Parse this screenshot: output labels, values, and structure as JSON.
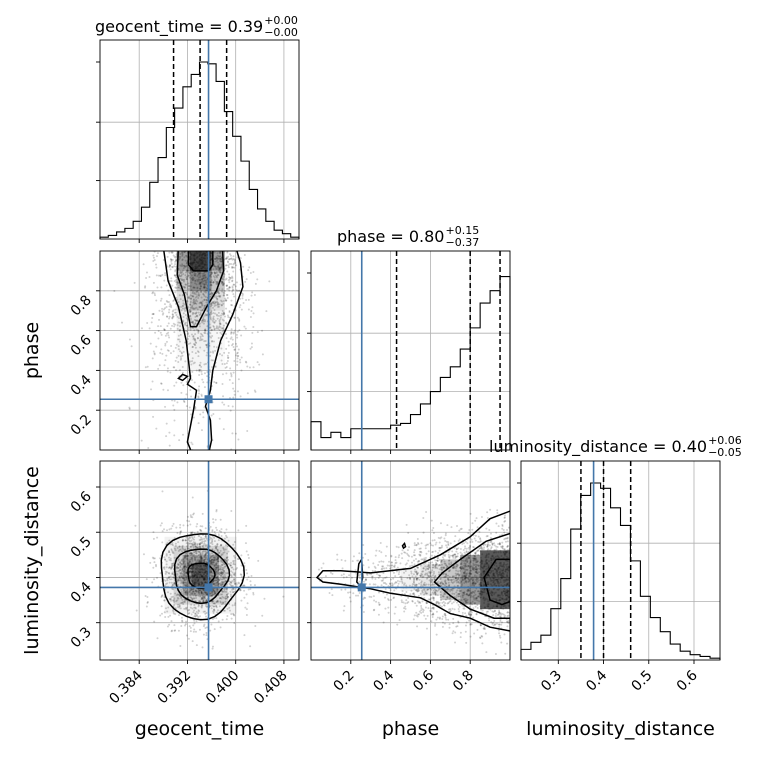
{
  "chart_data": {
    "type": "corner",
    "parameters": [
      "geocent_time",
      "phase",
      "luminosity_distance"
    ],
    "truth": [
      0.3955,
      0.255,
      0.378
    ],
    "truth_color": "#4477aa",
    "ranges": [
      [
        0.3775,
        0.4105
      ],
      [
        0.0,
        1.0
      ],
      [
        0.2175,
        0.6575
      ]
    ],
    "ticks": {
      "geocent_time": [
        "0.384",
        "0.392",
        "0.400",
        "0.408"
      ],
      "phase": [
        "0.2",
        "0.4",
        "0.6",
        "0.8"
      ],
      "luminosity_distance": [
        "0.3",
        "0.4",
        "0.5",
        "0.6"
      ]
    },
    "titles": [
      {
        "main": "geocent_time = 0.39",
        "sup": "+0.00",
        "sub": "−0.00"
      },
      {
        "main": "phase = 0.80",
        "sup": "+0.15",
        "sub": "−0.37"
      },
      {
        "main": "luminosity_distance = 0.40",
        "sup": "+0.06",
        "sub": "−0.05"
      }
    ],
    "quantiles": [
      [
        0.3897,
        0.3941,
        0.3985
      ],
      [
        0.43,
        0.8,
        0.95
      ],
      [
        0.35,
        0.4,
        0.46
      ]
    ],
    "histograms": [
      {
        "param": "geocent_time",
        "edges": [
          0.3775,
          0.4105
        ],
        "heights": [
          0.01,
          0.02,
          0.04,
          0.06,
          0.1,
          0.18,
          0.32,
          0.46,
          0.63,
          0.74,
          0.86,
          0.93,
          1.0,
          0.99,
          0.89,
          0.72,
          0.58,
          0.44,
          0.28,
          0.17,
          0.1,
          0.05,
          0.03,
          0.01
        ]
      },
      {
        "param": "phase",
        "edges": [
          0.0,
          1.0
        ],
        "heights": [
          0.16,
          0.07,
          0.1,
          0.07,
          0.12,
          0.12,
          0.12,
          0.12,
          0.14,
          0.15,
          0.2,
          0.26,
          0.33,
          0.41,
          0.47,
          0.57,
          0.69,
          0.83,
          0.9,
          0.98
        ]
      },
      {
        "param": "luminosity_distance",
        "edges": [
          0.2175,
          0.6575
        ],
        "heights": [
          0.06,
          0.1,
          0.14,
          0.29,
          0.46,
          0.74,
          0.93,
          1.0,
          0.97,
          0.86,
          0.76,
          0.56,
          0.36,
          0.24,
          0.16,
          0.09,
          0.05,
          0.03,
          0.02,
          0.01
        ]
      }
    ],
    "scatter_2d": [
      {
        "x_param": "geocent_time",
        "y_param": "phase"
      },
      {
        "x_param": "geocent_time",
        "y_param": "luminosity_distance"
      },
      {
        "x_param": "phase",
        "y_param": "luminosity_distance"
      }
    ],
    "grid": true,
    "xlabel_position": "bottom",
    "ylabel_position": "left"
  }
}
